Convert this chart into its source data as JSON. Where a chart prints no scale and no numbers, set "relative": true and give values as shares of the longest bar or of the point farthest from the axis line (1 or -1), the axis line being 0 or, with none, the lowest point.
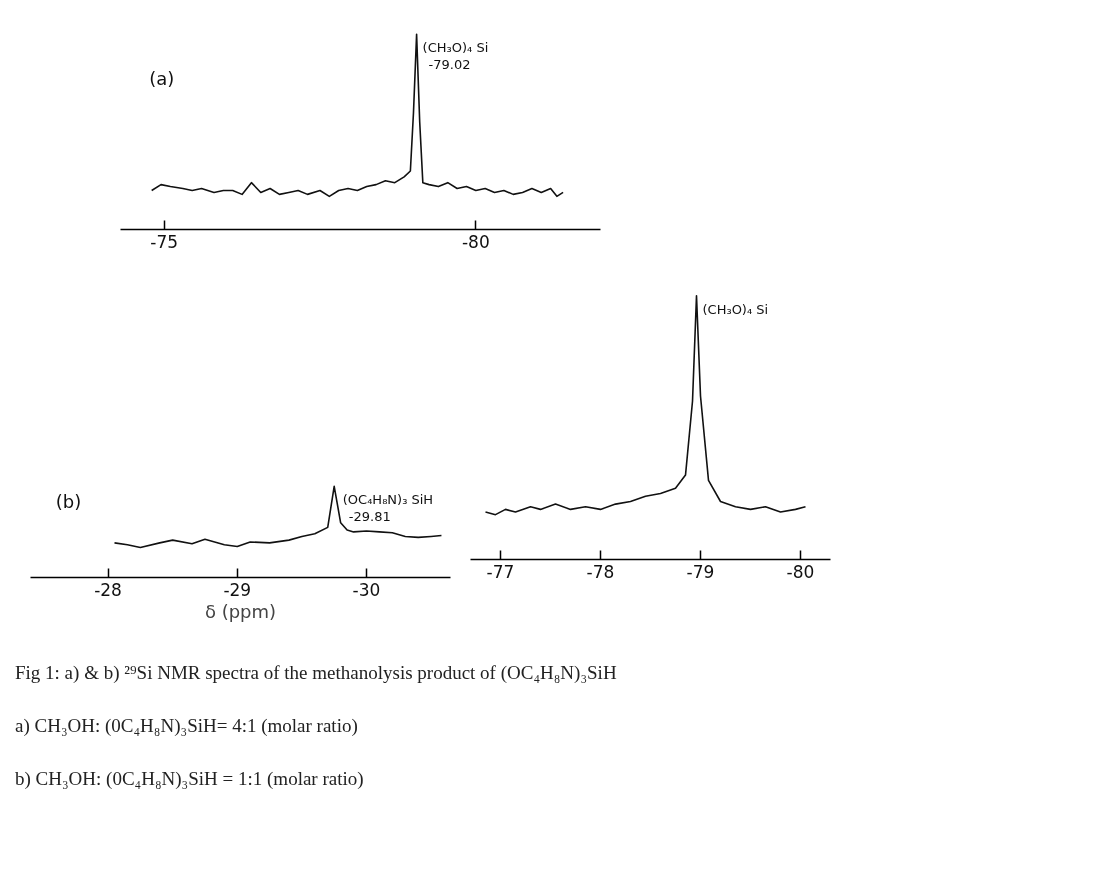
{
  "chart_data": [
    {
      "type": "line",
      "title": "(a)",
      "relative": true,
      "grid": false,
      "xlim": [
        -74.3,
        -82.0
      ],
      "xticks": [
        -75,
        -80
      ],
      "series": [
        {
          "color": "#111111",
          "x": [
            -74.8,
            -74.95,
            -75.1,
            -75.3,
            -75.45,
            -75.6,
            -75.8,
            -75.95,
            -76.1,
            -76.25,
            -76.4,
            -76.55,
            -76.7,
            -76.85,
            -77.0,
            -77.15,
            -77.3,
            -77.5,
            -77.65,
            -77.8,
            -77.95,
            -78.1,
            -78.25,
            -78.4,
            -78.55,
            -78.7,
            -78.85,
            -78.95,
            -79.0,
            -79.05,
            -79.1,
            -79.15,
            -79.25,
            -79.4,
            -79.55,
            -79.7,
            -79.85,
            -80.0,
            -80.15,
            -80.3,
            -80.45,
            -80.6,
            -80.75,
            -80.9,
            -81.05,
            -81.2,
            -81.3,
            -81.4
          ],
          "values": [
            0.2,
            0.23,
            0.22,
            0.21,
            0.2,
            0.21,
            0.19,
            0.2,
            0.2,
            0.18,
            0.24,
            0.19,
            0.21,
            0.18,
            0.19,
            0.2,
            0.18,
            0.2,
            0.17,
            0.2,
            0.21,
            0.2,
            0.22,
            0.23,
            0.25,
            0.24,
            0.27,
            0.3,
            0.6,
            1.0,
            0.55,
            0.24,
            0.23,
            0.22,
            0.24,
            0.21,
            0.22,
            0.2,
            0.21,
            0.19,
            0.2,
            0.18,
            0.19,
            0.21,
            0.19,
            0.21,
            0.17,
            0.19
          ]
        }
      ],
      "annotations": [
        {
          "text": "(CH₃O)₄ Si",
          "x": -79.05,
          "y": 1.0
        },
        {
          "text": "-79.02",
          "x": -79.05,
          "y": 1.0
        }
      ]
    },
    {
      "type": "line",
      "title": "(b)",
      "relative": true,
      "grid": false,
      "xlim": [
        -27.4,
        -30.65
      ],
      "xticks": [
        -28,
        -29,
        -30
      ],
      "xlabel": "δ (ppm)",
      "series": [
        {
          "color": "#111111",
          "x": [
            -28.05,
            -28.15,
            -28.25,
            -28.4,
            -28.5,
            -28.65,
            -28.75,
            -28.9,
            -29.0,
            -29.1,
            -29.25,
            -29.4,
            -29.5,
            -29.6,
            -29.7,
            -29.75,
            -29.8,
            -29.85,
            -29.9,
            -30.0,
            -30.1,
            -30.2,
            -30.3,
            -30.4,
            -30.5,
            -30.58
          ],
          "values": [
            0.38,
            0.36,
            0.33,
            0.38,
            0.41,
            0.37,
            0.42,
            0.36,
            0.34,
            0.39,
            0.38,
            0.41,
            0.45,
            0.48,
            0.55,
            1.0,
            0.6,
            0.52,
            0.5,
            0.51,
            0.5,
            0.49,
            0.45,
            0.44,
            0.45,
            0.46
          ]
        }
      ],
      "annotations": [
        {
          "text": "(OC₄H₈N)₃ SiH",
          "x": -29.77,
          "y": 1.0
        },
        {
          "text": "-29.81",
          "x": -29.77,
          "y": 1.0
        }
      ]
    },
    {
      "type": "line",
      "relative": true,
      "grid": false,
      "xlim": [
        -76.7,
        -80.3
      ],
      "xticks": [
        -77,
        -78,
        -79,
        -80
      ],
      "series": [
        {
          "color": "#111111",
          "x": [
            -76.85,
            -76.95,
            -77.05,
            -77.15,
            -77.3,
            -77.4,
            -77.55,
            -77.7,
            -77.85,
            -78.0,
            -78.15,
            -78.3,
            -78.45,
            -78.6,
            -78.75,
            -78.85,
            -78.92,
            -78.96,
            -79.0,
            -79.08,
            -79.2,
            -79.35,
            -79.5,
            -79.65,
            -79.8,
            -79.95,
            -80.05
          ],
          "values": [
            0.18,
            0.17,
            0.19,
            0.18,
            0.2,
            0.19,
            0.21,
            0.19,
            0.2,
            0.19,
            0.21,
            0.22,
            0.24,
            0.25,
            0.27,
            0.32,
            0.6,
            1.0,
            0.62,
            0.3,
            0.22,
            0.2,
            0.19,
            0.2,
            0.18,
            0.19,
            0.2
          ]
        }
      ],
      "annotations": [
        {
          "text": "(CH₃O)₄ Si",
          "x": -78.96,
          "y": 1.0
        },
        "Fig 1: a) & b) ²⁹Si  NMR spectra  of the methanolysis product of (OC₄H₈N)₃SiH",
        "a) CH₃OH: (0C₄H₈N)₃SiH= 4:1 (molar ratio)",
        "b) CH₃OH: (0C₄H₈N)₃SiH = 1:1 (molar ratio)"
      ]
    }
  ]
}
